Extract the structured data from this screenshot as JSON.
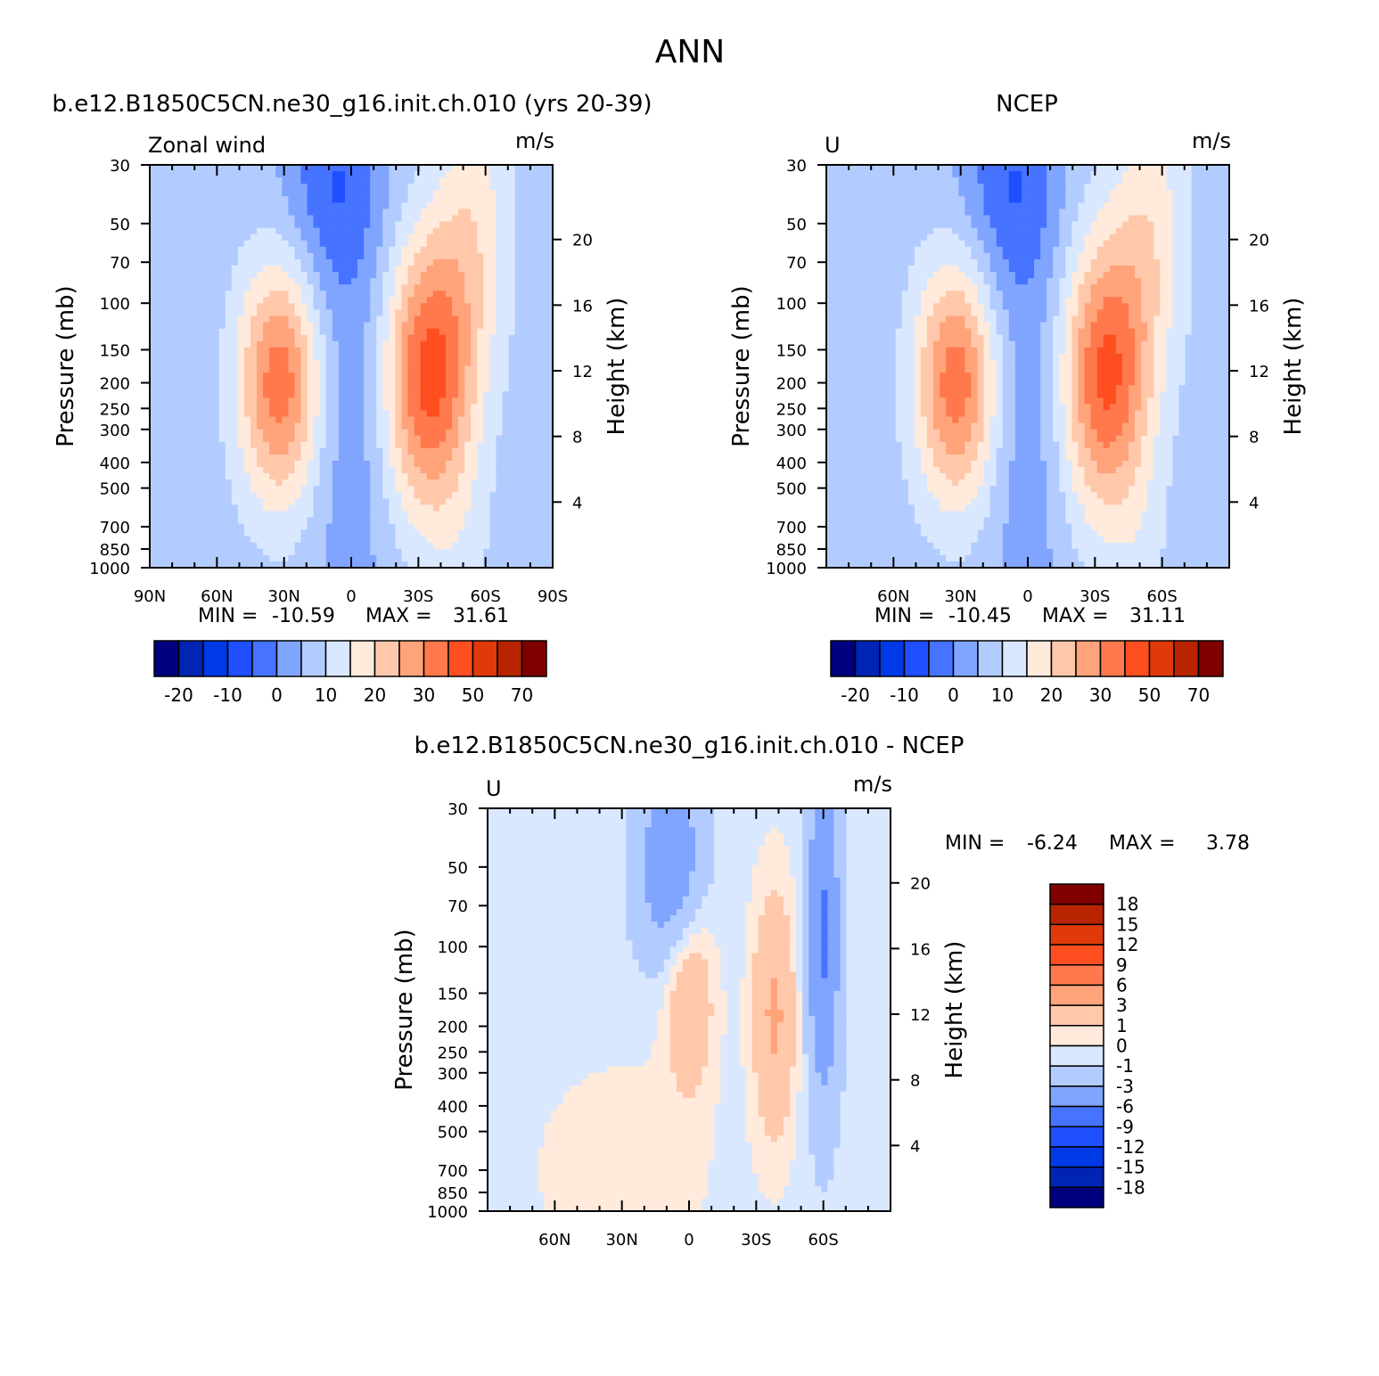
{
  "figure": {
    "title": "ANN"
  },
  "colors": {
    "wind": [
      "#00007f",
      "#0024b3",
      "#0039e6",
      "#1f4fff",
      "#4673ff",
      "#80a5ff",
      "#b3ccff",
      "#d9e8ff",
      "#ffeadb",
      "#ffc8ab",
      "#ffa37a",
      "#ff794d",
      "#ff4e1f",
      "#e03a0a",
      "#b82400",
      "#800000"
    ],
    "diff": [
      "#00007f",
      "#0024b3",
      "#0039e6",
      "#1f4fff",
      "#4673ff",
      "#80a5ff",
      "#b3ccff",
      "#d9e8ff",
      "#ffeadb",
      "#ffc8ab",
      "#ffa37a",
      "#ff794d",
      "#ff4e1f",
      "#e03a0a",
      "#b82400",
      "#800000"
    ]
  },
  "chart_data": [
    {
      "type": "heatmap",
      "title": "b.e12.B1850C5CN.ne30_g16.init.ch.010 (yrs 20-39)",
      "left_label": "Zonal wind",
      "units": "m/s",
      "ylabel": "Pressure (mb)",
      "ylabel_right": "Height (km)",
      "stats": {
        "min_label": "MIN =",
        "min": "-10.59",
        "max_label": "MAX =",
        "max": "31.61"
      },
      "x_ticks": [
        "90N",
        "60N",
        "30N",
        "0",
        "30S",
        "60S",
        "90S"
      ],
      "x_tick_values": [
        90,
        60,
        30,
        0,
        -30,
        -60,
        -90
      ],
      "y_ticks": [
        "30",
        "50",
        "70",
        "100",
        "150",
        "200",
        "250",
        "300",
        "400",
        "500",
        "700",
        "850",
        "1000"
      ],
      "y_tick_values": [
        30,
        50,
        70,
        100,
        150,
        200,
        250,
        300,
        400,
        500,
        700,
        850,
        1000
      ],
      "height_ticks": [
        "4",
        "8",
        "12",
        "16",
        "20"
      ],
      "height_tick_values": [
        4,
        8,
        12,
        16,
        20
      ],
      "ylim": [
        1000,
        30
      ],
      "xlim": [
        90,
        -90
      ],
      "colorbar_labels": [
        "-20",
        "-10",
        "0",
        "10",
        "20",
        "30",
        "50",
        "70"
      ],
      "levels": [
        -25,
        -20,
        -15,
        -10,
        -5,
        0,
        5,
        10,
        15,
        20,
        25,
        30,
        40,
        50,
        60,
        70
      ],
      "features": [
        {
          "lat": 0,
          "p": 100,
          "value": -8
        },
        {
          "lat": 30,
          "p": 200,
          "value": 23
        },
        {
          "lat": -33,
          "p": 200,
          "value": 31.6
        },
        {
          "lat": 15,
          "p": 40,
          "value": -10.6
        }
      ]
    },
    {
      "type": "heatmap",
      "title": "NCEP",
      "left_label": "U",
      "units": "m/s",
      "ylabel": "Pressure (mb)",
      "ylabel_right": "Height (km)",
      "stats": {
        "min_label": "MIN =",
        "min": "-10.45",
        "max_label": "MAX =",
        "max": "31.11"
      },
      "x_ticks": [
        "60N",
        "30N",
        "0",
        "30S",
        "60S"
      ],
      "x_tick_values": [
        60,
        30,
        0,
        -30,
        -60
      ],
      "y_ticks": [
        "30",
        "50",
        "70",
        "100",
        "150",
        "200",
        "250",
        "300",
        "400",
        "500",
        "700",
        "850",
        "1000"
      ],
      "y_tick_values": [
        30,
        50,
        70,
        100,
        150,
        200,
        250,
        300,
        400,
        500,
        700,
        850,
        1000
      ],
      "height_ticks": [
        "4",
        "8",
        "12",
        "16",
        "20"
      ],
      "height_tick_values": [
        4,
        8,
        12,
        16,
        20
      ],
      "ylim": [
        1000,
        30
      ],
      "xlim": [
        90,
        -90
      ],
      "colorbar_labels": [
        "-20",
        "-10",
        "0",
        "10",
        "20",
        "30",
        "50",
        "70"
      ],
      "levels": [
        -25,
        -20,
        -15,
        -10,
        -5,
        0,
        5,
        10,
        15,
        20,
        25,
        30,
        40,
        50,
        60,
        70
      ],
      "features": [
        {
          "lat": 0,
          "p": 100,
          "value": -7
        },
        {
          "lat": 30,
          "p": 200,
          "value": 24
        },
        {
          "lat": -30,
          "p": 200,
          "value": 31.1
        },
        {
          "lat": 15,
          "p": 40,
          "value": -10.45
        }
      ]
    },
    {
      "type": "heatmap",
      "title": "b.e12.B1850C5CN.ne30_g16.init.ch.010 - NCEP",
      "left_label": "U",
      "units": "m/s",
      "ylabel": "Pressure (mb)",
      "ylabel_right": "Height (km)",
      "stats": {
        "min_label": "MIN =",
        "min": "-6.24",
        "max_label": "MAX =",
        "max": "3.78"
      },
      "x_ticks": [
        "60N",
        "30N",
        "0",
        "30S",
        "60S"
      ],
      "x_tick_values": [
        60,
        30,
        0,
        -30,
        -60
      ],
      "y_ticks": [
        "30",
        "50",
        "70",
        "100",
        "150",
        "200",
        "250",
        "300",
        "400",
        "500",
        "700",
        "850",
        "1000"
      ],
      "y_tick_values": [
        30,
        50,
        70,
        100,
        150,
        200,
        250,
        300,
        400,
        500,
        700,
        850,
        1000
      ],
      "height_ticks": [
        "4",
        "8",
        "12",
        "16",
        "20"
      ],
      "height_tick_values": [
        4,
        8,
        12,
        16,
        20
      ],
      "ylim": [
        1000,
        30
      ],
      "xlim": [
        90,
        -90
      ],
      "colorbar_labels": [
        "18",
        "15",
        "12",
        "9",
        "6",
        "3",
        "1",
        "0",
        "-1",
        "-3",
        "-6",
        "-9",
        "-12",
        "-15",
        "-18"
      ],
      "levels": [
        -18,
        -15,
        -12,
        -9,
        -6,
        -3,
        -1,
        0,
        1,
        3,
        6,
        9,
        12,
        15,
        18
      ],
      "features": [
        {
          "lat": 8,
          "p": 50,
          "value": -5
        },
        {
          "lat": 0,
          "p": 150,
          "value": 3.5
        },
        {
          "lat": -38,
          "p": 170,
          "value": 3.8
        },
        {
          "lat": -60,
          "p": 80,
          "value": -6.2
        }
      ]
    }
  ]
}
